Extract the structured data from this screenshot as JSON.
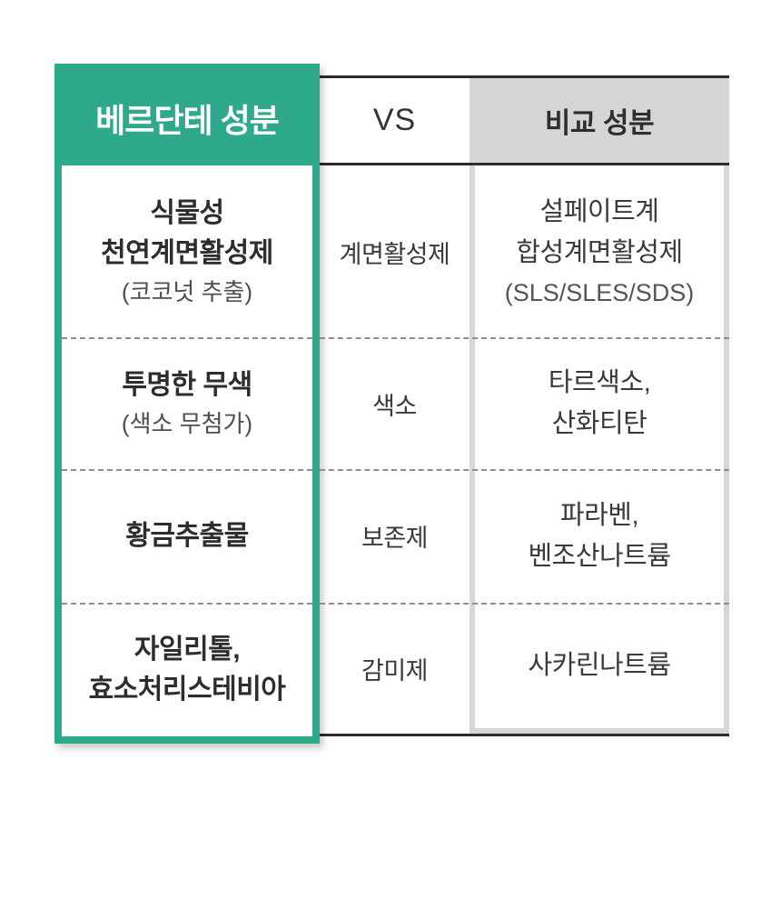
{
  "title_column": {
    "header": "베르단테 성분"
  },
  "vs_column": {
    "header": "VS"
  },
  "compare_column": {
    "header": "비교 성분"
  },
  "rows": [
    {
      "left_lines": [
        "식물성",
        "천연계면활성제"
      ],
      "left_sub": "(코코넛 추출)",
      "category": "계면활성제",
      "right_lines": [
        "설페이트계",
        "합성계면활성제"
      ],
      "right_sub": "(SLS/SLES/SDS)"
    },
    {
      "left_lines": [
        "투명한 무색"
      ],
      "left_sub": "(색소 무첨가)",
      "category": "색소",
      "right_lines": [
        "타르색소,",
        "산화티탄"
      ]
    },
    {
      "left_lines": [
        "황금추출물"
      ],
      "category": "보존제",
      "right_lines": [
        "파라벤,",
        "벤조산나트륨"
      ]
    },
    {
      "left_lines": [
        "자일리톨,",
        "효소처리스테비아"
      ],
      "category": "감미제",
      "right_lines": [
        "사카린나트륨"
      ]
    }
  ],
  "colors": {
    "brand_green": "#2fa98b",
    "compare_header_gray": "#d5d5d5",
    "compare_border_gray": "#d6d6d6",
    "table_line_dark": "#2b2b2b",
    "dash_gray": "#8e8e8e"
  }
}
